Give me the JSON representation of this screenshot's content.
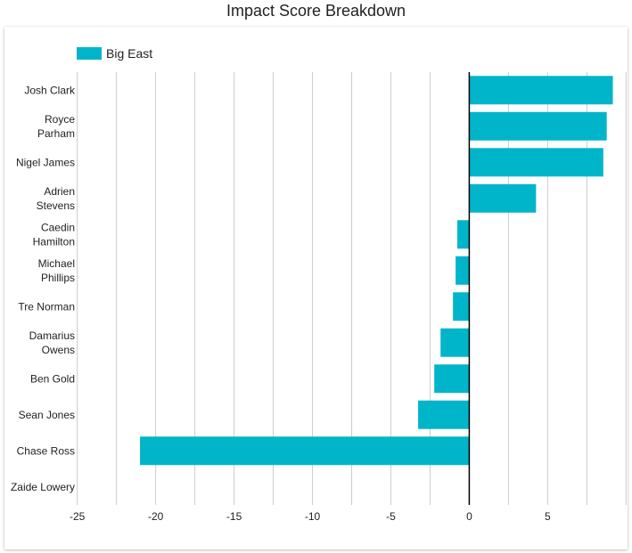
{
  "chart_data": {
    "type": "bar",
    "orientation": "horizontal",
    "title": "Impact Score Breakdown",
    "xlabel": "",
    "ylabel": "",
    "categories": [
      [
        "Josh Clark"
      ],
      [
        "Royce",
        "Parham"
      ],
      [
        "Nigel James"
      ],
      [
        "Adrien",
        "Stevens"
      ],
      [
        "Caedin",
        "Hamilton"
      ],
      [
        "Michael",
        "Phillips"
      ],
      [
        "Tre Norman"
      ],
      [
        "Damarius",
        "Owens"
      ],
      [
        "Ben Gold"
      ],
      [
        "Sean Jones"
      ],
      [
        "Chase Ross"
      ],
      [
        "Zaide Lowery"
      ]
    ],
    "series": [
      {
        "name": "Big East",
        "color": "#00b5ca",
        "values": [
          9.16,
          8.77,
          8.55,
          4.26,
          -0.76,
          -0.87,
          -1.04,
          -1.83,
          -2.23,
          -3.26,
          -21.0,
          0
        ]
      }
    ],
    "xlim": [
      -25,
      10
    ],
    "xticks": [
      -25,
      -20,
      -15,
      -10,
      -5,
      0,
      5
    ],
    "gridline_step": 2.5,
    "grid": true,
    "legend_position": "top-left"
  }
}
